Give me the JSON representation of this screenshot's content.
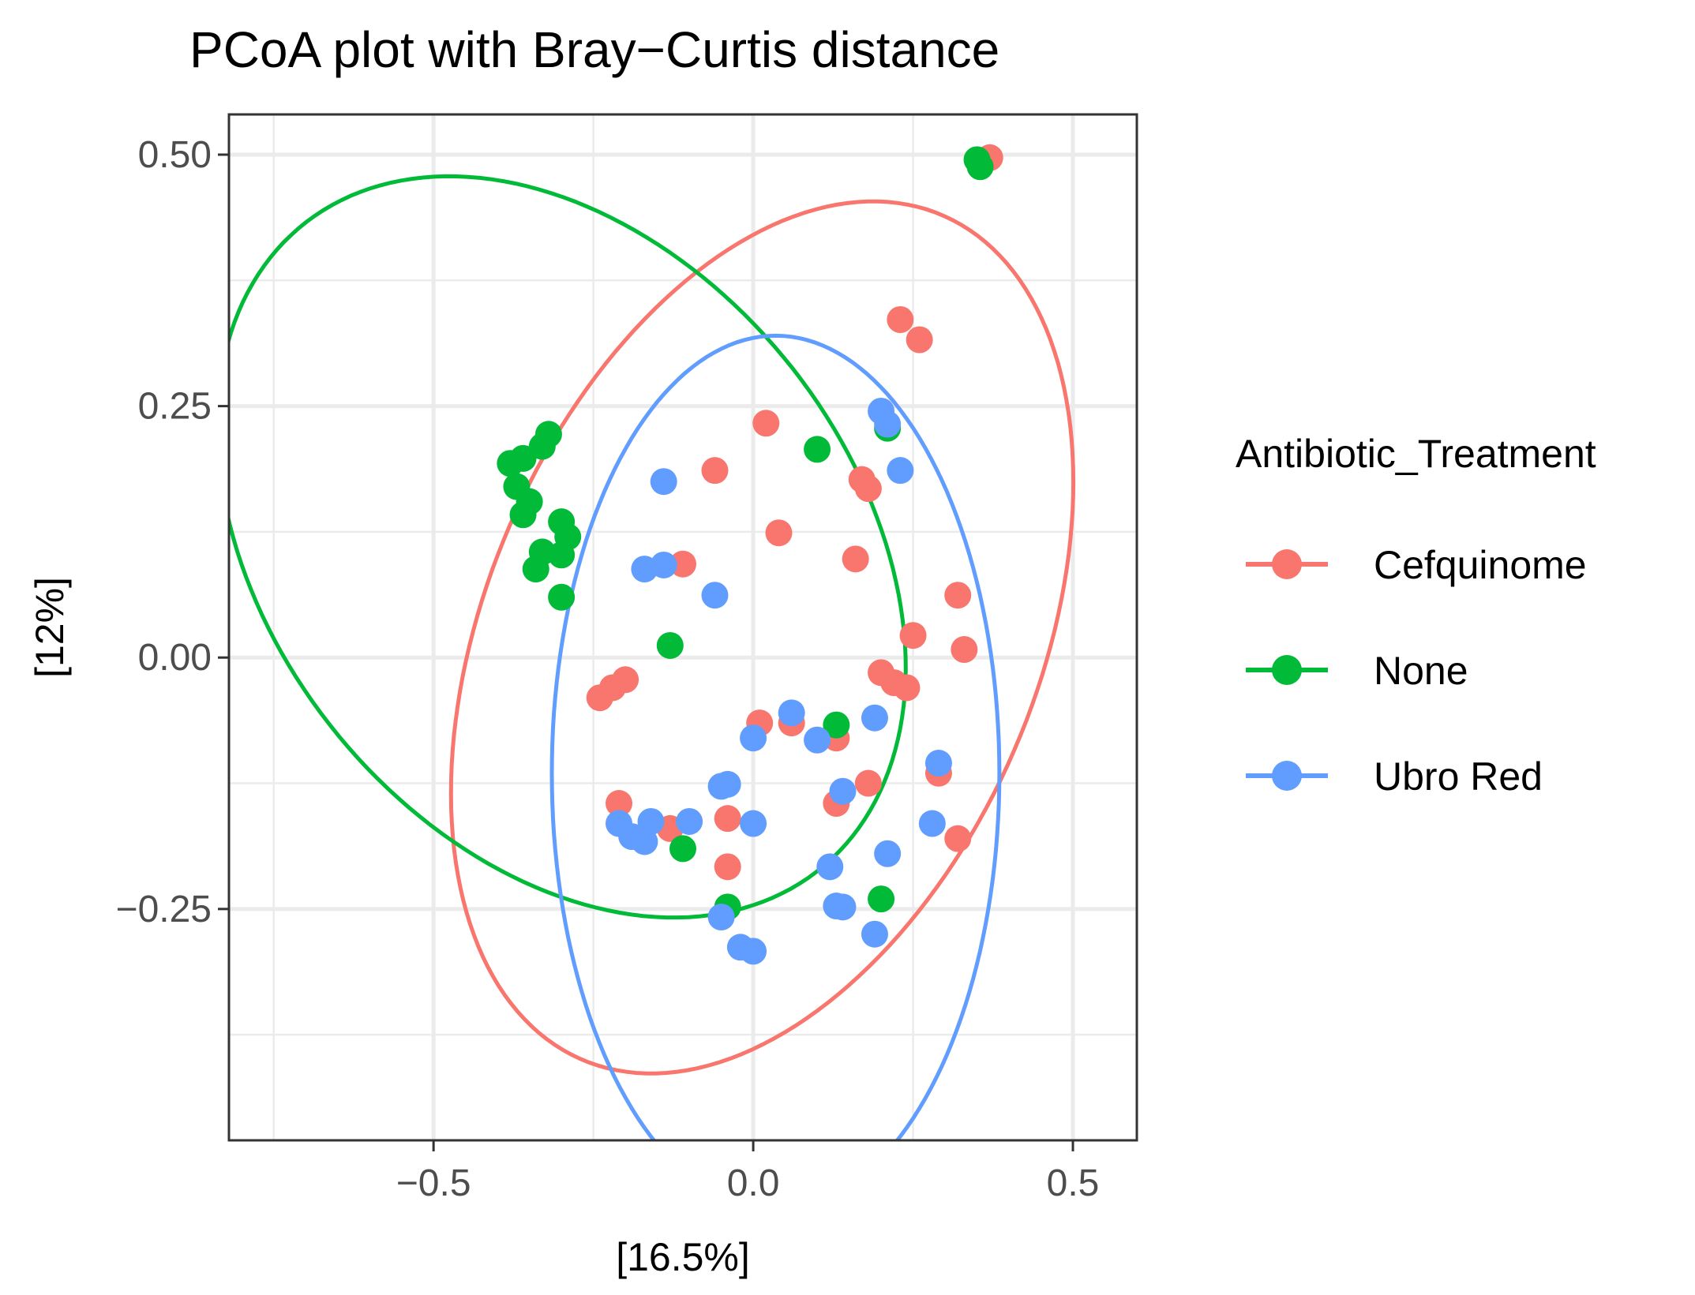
{
  "chart_data": {
    "type": "scatter",
    "title": "PCoA plot with Bray−Curtis distance",
    "xlabel": "[16.5%]",
    "ylabel": "[12%]",
    "xlim": [
      -0.82,
      0.6
    ],
    "ylim": [
      -0.48,
      0.54
    ],
    "x_ticks": [
      -0.5,
      0.0,
      0.5
    ],
    "x_tick_labels": [
      "−0.5",
      "0.0",
      "0.5"
    ],
    "y_ticks": [
      -0.25,
      0.0,
      0.25,
      0.5
    ],
    "y_tick_labels": [
      "−0.25",
      "0.00",
      "0.25",
      "0.50"
    ],
    "grid": true,
    "legend": {
      "title": "Antibiotic_Treatment",
      "position": "right"
    },
    "series": [
      {
        "name": "Cefquinome",
        "color": "#F8766D",
        "ellipse": {
          "cx": 0.014,
          "cy": 0.02,
          "rx": 0.54,
          "ry": 0.365,
          "angle": 36
        },
        "points": [
          [
            0.37,
            0.497
          ],
          [
            0.23,
            0.336
          ],
          [
            0.26,
            0.316
          ],
          [
            0.02,
            0.233
          ],
          [
            -0.06,
            0.186
          ],
          [
            0.17,
            0.177
          ],
          [
            0.18,
            0.168
          ],
          [
            0.04,
            0.124
          ],
          [
            -0.11,
            0.093
          ],
          [
            0.16,
            0.098
          ],
          [
            0.32,
            0.062
          ],
          [
            0.25,
            0.022
          ],
          [
            0.33,
            0.008
          ],
          [
            -0.2,
            -0.022
          ],
          [
            -0.22,
            -0.03
          ],
          [
            -0.24,
            -0.04
          ],
          [
            0.2,
            -0.015
          ],
          [
            0.22,
            -0.025
          ],
          [
            0.24,
            -0.03
          ],
          [
            0.06,
            -0.065
          ],
          [
            0.01,
            -0.065
          ],
          [
            0.13,
            -0.08
          ],
          [
            -0.21,
            -0.145
          ],
          [
            0.18,
            -0.125
          ],
          [
            0.29,
            -0.115
          ],
          [
            0.13,
            -0.145
          ],
          [
            -0.04,
            -0.16
          ],
          [
            -0.13,
            -0.17
          ],
          [
            -0.04,
            -0.208
          ],
          [
            0.32,
            -0.18
          ]
        ]
      },
      {
        "name": "None",
        "color": "#00BA38",
        "ellipse": {
          "cx": -0.3,
          "cy": 0.11,
          "rx": 0.56,
          "ry": 0.335,
          "angle": -20
        },
        "points": [
          [
            0.35,
            0.495
          ],
          [
            0.355,
            0.488
          ],
          [
            -0.32,
            0.222
          ],
          [
            -0.33,
            0.21
          ],
          [
            -0.38,
            0.193
          ],
          [
            -0.36,
            0.198
          ],
          [
            -0.37,
            0.17
          ],
          [
            -0.35,
            0.155
          ],
          [
            -0.36,
            0.142
          ],
          [
            -0.3,
            0.135
          ],
          [
            -0.29,
            0.12
          ],
          [
            -0.33,
            0.105
          ],
          [
            -0.3,
            0.102
          ],
          [
            -0.34,
            0.088
          ],
          [
            -0.3,
            0.06
          ],
          [
            0.1,
            0.207
          ],
          [
            0.21,
            0.228
          ],
          [
            -0.13,
            0.012
          ],
          [
            0.13,
            -0.067
          ],
          [
            -0.11,
            -0.19
          ],
          [
            0.2,
            -0.24
          ],
          [
            -0.04,
            -0.248
          ]
        ]
      },
      {
        "name": "Ubro Red",
        "color": "#619CFF",
        "ellipse": {
          "cx": 0.035,
          "cy": -0.115,
          "rx": 0.35,
          "ry": 0.435,
          "angle": 0
        },
        "points": [
          [
            0.2,
            0.245
          ],
          [
            0.21,
            0.232
          ],
          [
            0.23,
            0.186
          ],
          [
            -0.14,
            0.175
          ],
          [
            -0.17,
            0.088
          ],
          [
            -0.14,
            0.092
          ],
          [
            -0.06,
            0.062
          ],
          [
            0.06,
            -0.055
          ],
          [
            0.19,
            -0.06
          ],
          [
            0.1,
            -0.082
          ],
          [
            0.0,
            -0.08
          ],
          [
            0.29,
            -0.105
          ],
          [
            -0.05,
            -0.128
          ],
          [
            -0.04,
            -0.126
          ],
          [
            0.14,
            -0.133
          ],
          [
            -0.21,
            -0.165
          ],
          [
            -0.16,
            -0.163
          ],
          [
            -0.1,
            -0.163
          ],
          [
            -0.19,
            -0.178
          ],
          [
            -0.17,
            -0.183
          ],
          [
            0.0,
            -0.165
          ],
          [
            0.28,
            -0.165
          ],
          [
            0.21,
            -0.195
          ],
          [
            0.12,
            -0.208
          ],
          [
            -0.05,
            -0.258
          ],
          [
            0.14,
            -0.248
          ],
          [
            0.13,
            -0.247
          ],
          [
            0.19,
            -0.275
          ],
          [
            -0.02,
            -0.288
          ],
          [
            0.0,
            -0.292
          ]
        ]
      }
    ]
  }
}
